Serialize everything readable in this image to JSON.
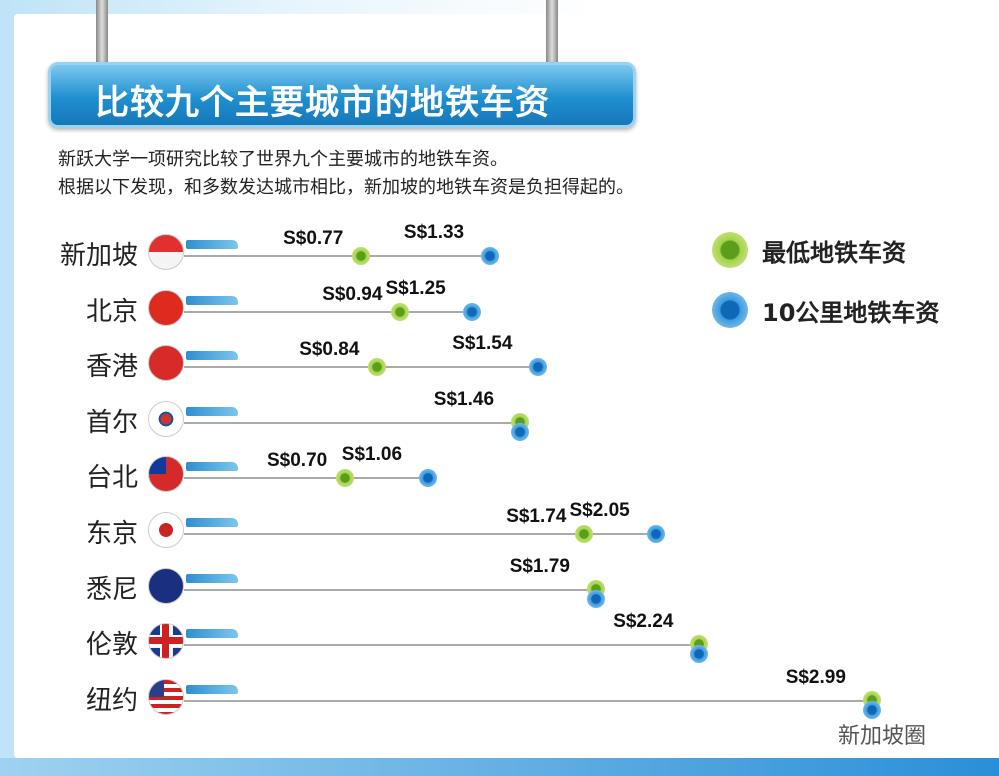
{
  "title": "比较九个主要城市的地铁车资",
  "intro": [
    "新跃大学一项研究比较了世界九个主要城市的地铁车资。",
    "根据以下发现，和多数发达城市相比，新加坡的地铁车资是负担得起的。"
  ],
  "legend": {
    "min": "最低地铁车资",
    "km10": "10公里地铁车资"
  },
  "colors": {
    "min": "#8cc63f",
    "km10": "#2a8ad4"
  },
  "watermark": "新加坡圈",
  "chart_data": {
    "type": "dot",
    "currency": "S$",
    "series": [
      {
        "name": "最低地铁车资",
        "key": "min"
      },
      {
        "name": "10公里地铁车资",
        "key": "km10"
      }
    ],
    "rows": [
      {
        "city": "新加坡",
        "flag": "singapore",
        "min": 0.77,
        "km10": 1.33,
        "min_label": "S$0.77",
        "km10_label": "S$1.33"
      },
      {
        "city": "北京",
        "flag": "china",
        "min": 0.94,
        "km10": 1.25,
        "min_label": "S$0.94",
        "km10_label": "S$1.25"
      },
      {
        "city": "香港",
        "flag": "hongkong",
        "min": 0.84,
        "km10": 1.54,
        "min_label": "S$0.84",
        "km10_label": "S$1.54"
      },
      {
        "city": "首尔",
        "flag": "korea",
        "min": 1.46,
        "km10": 1.46,
        "min_label": "",
        "km10_label": "S$1.46"
      },
      {
        "city": "台北",
        "flag": "taiwan",
        "min": 0.7,
        "km10": 1.06,
        "min_label": "S$0.70",
        "km10_label": "S$1.06"
      },
      {
        "city": "东京",
        "flag": "japan",
        "min": 1.74,
        "km10": 2.05,
        "min_label": "S$1.74",
        "km10_label": "S$2.05"
      },
      {
        "city": "悉尼",
        "flag": "australia",
        "min": 1.79,
        "km10": 1.79,
        "min_label": "",
        "km10_label": "S$1.79"
      },
      {
        "city": "伦敦",
        "flag": "uk",
        "min": 2.24,
        "km10": 2.24,
        "min_label": "",
        "km10_label": "S$2.24"
      },
      {
        "city": "纽约",
        "flag": "usa",
        "min": 2.99,
        "km10": 2.99,
        "min_label": "",
        "km10_label": "S$2.99"
      }
    ]
  }
}
